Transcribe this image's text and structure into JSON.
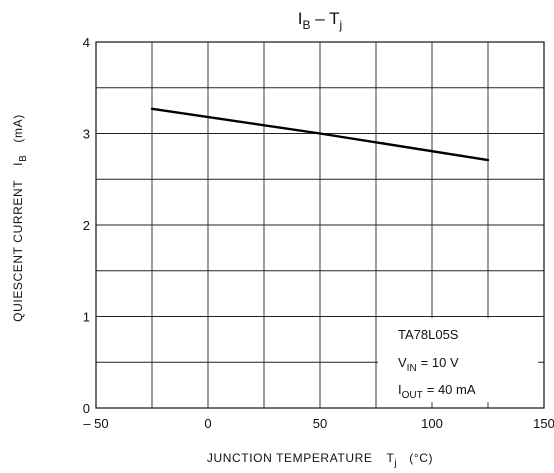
{
  "chart_data": {
    "type": "line",
    "title": {
      "main": "I",
      "main_sub": "B",
      "separator": " – ",
      "var": "T",
      "var_sub": "j"
    },
    "xlabel": {
      "text": "JUNCTION TEMPERATURE",
      "symbol": "T",
      "symbol_sub": "j",
      "unit": "(°C)"
    },
    "ylabel": {
      "text": "QUIESCENT CURRENT",
      "symbol": "I",
      "symbol_sub": "B",
      "unit": "(mA)"
    },
    "xlim": [
      -50,
      150
    ],
    "ylim": [
      0,
      4
    ],
    "x_ticks": [
      -50,
      0,
      50,
      100,
      150
    ],
    "x_tick_labels": [
      "– 50",
      "0",
      "50",
      "100",
      "150"
    ],
    "y_ticks": [
      0,
      1,
      2,
      3,
      4
    ],
    "y_tick_labels": [
      "0",
      "1",
      "2",
      "3",
      "4"
    ],
    "x_grid": [
      -50,
      -25,
      0,
      25,
      50,
      75,
      100,
      125,
      150
    ],
    "y_grid": [
      0,
      0.5,
      1,
      1.5,
      2,
      2.5,
      3,
      3.5,
      4
    ],
    "grid": true,
    "series": [
      {
        "x": [
          -25,
          50,
          125
        ],
        "y": [
          3.27,
          3.0,
          2.71
        ]
      }
    ],
    "annotation": {
      "part": "TA78L05S",
      "vin_sym": "V",
      "vin_sub": "IN",
      "vin_val": "= 10 V",
      "iout_sym": "I",
      "iout_sub": "OUT",
      "iout_val": "= 40 mA"
    }
  }
}
